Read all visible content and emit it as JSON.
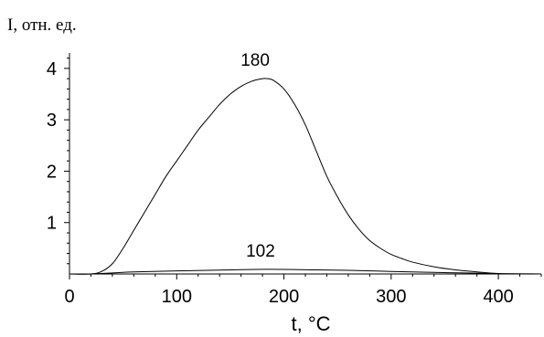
{
  "chart_data": {
    "type": "line",
    "title": "",
    "ylabel": "I, отн. ед.",
    "xlabel": "t, °C",
    "xlim": [
      0,
      440
    ],
    "ylim": [
      0,
      4.3
    ],
    "xticks": [
      0,
      100,
      200,
      300,
      400
    ],
    "yticks": [
      1,
      2,
      3,
      4
    ],
    "x_minor_step": 20,
    "y_minor_step": 0.2,
    "grid": false,
    "line_color": "#000000",
    "series": [
      {
        "name": "180",
        "x": [
          0,
          20,
          30,
          40,
          50,
          60,
          70,
          80,
          90,
          100,
          110,
          120,
          130,
          140,
          150,
          160,
          170,
          180,
          185,
          190,
          200,
          210,
          220,
          230,
          240,
          250,
          260,
          270,
          280,
          290,
          300,
          310,
          320,
          340,
          360,
          380,
          400,
          440
        ],
        "y": [
          0,
          0,
          0.05,
          0.2,
          0.5,
          0.85,
          1.2,
          1.55,
          1.9,
          2.2,
          2.5,
          2.8,
          3.05,
          3.3,
          3.5,
          3.65,
          3.75,
          3.8,
          3.8,
          3.77,
          3.6,
          3.3,
          2.9,
          2.4,
          1.9,
          1.5,
          1.15,
          0.87,
          0.65,
          0.5,
          0.38,
          0.3,
          0.23,
          0.14,
          0.08,
          0.04,
          0.01,
          0
        ]
      },
      {
        "name": "102",
        "x": [
          0,
          20,
          40,
          60,
          100,
          150,
          185,
          230,
          260,
          300,
          340,
          380,
          400,
          440
        ],
        "y": [
          0,
          0,
          0.02,
          0.04,
          0.06,
          0.08,
          0.09,
          0.08,
          0.07,
          0.05,
          0.03,
          0.015,
          0.005,
          0
        ]
      }
    ],
    "annotations": [
      "180",
      "102"
    ]
  }
}
